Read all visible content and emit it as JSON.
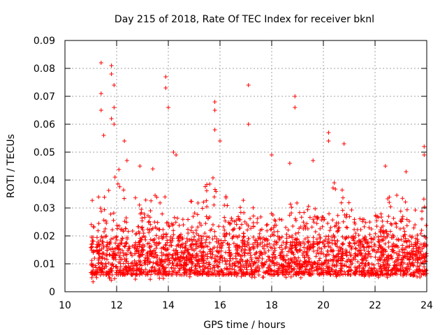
{
  "chart_data": {
    "type": "scatter",
    "title": "Day 215 of 2018, Rate Of TEC Index for receiver bknl",
    "xlabel": "GPS time / hours",
    "ylabel": "ROTI / TECUs",
    "xlim": [
      10,
      24
    ],
    "ylim": [
      0,
      0.09
    ],
    "grid": true,
    "marker": "+",
    "color": "#ff0000",
    "x_ticks": [
      10,
      12,
      14,
      16,
      18,
      20,
      22,
      24
    ],
    "x_tick_labels": [
      "10",
      "12",
      "14",
      "16",
      "18",
      "20",
      "22",
      "24"
    ],
    "y_ticks": [
      0,
      0.01,
      0.02,
      0.03,
      0.04,
      0.05,
      0.06,
      0.07,
      0.08,
      0.09
    ],
    "y_tick_labels": [
      "0",
      "0.01",
      "0.02",
      "0.03",
      "0.04",
      "0.05",
      "0.06",
      "0.07",
      "0.08",
      "0.09"
    ],
    "data_x_range": [
      11.0,
      24.0
    ],
    "series": [
      {
        "name": "ROTI",
        "points": [
          [
            11.4,
            0.082
          ],
          [
            11.8,
            0.081
          ],
          [
            11.8,
            0.078
          ],
          [
            11.9,
            0.074
          ],
          [
            11.4,
            0.071
          ],
          [
            11.9,
            0.066
          ],
          [
            11.8,
            0.062
          ],
          [
            11.9,
            0.06
          ],
          [
            11.4,
            0.065
          ],
          [
            11.5,
            0.056
          ],
          [
            13.9,
            0.077
          ],
          [
            13.9,
            0.073
          ],
          [
            14.0,
            0.066
          ],
          [
            14.2,
            0.05
          ],
          [
            15.8,
            0.068
          ],
          [
            15.8,
            0.065
          ],
          [
            16.0,
            0.054
          ],
          [
            15.8,
            0.058
          ],
          [
            17.1,
            0.074
          ],
          [
            17.1,
            0.06
          ],
          [
            18.9,
            0.07
          ],
          [
            18.9,
            0.066
          ],
          [
            20.2,
            0.057
          ],
          [
            20.2,
            0.054
          ],
          [
            20.8,
            0.053
          ],
          [
            23.9,
            0.052
          ],
          [
            23.9,
            0.049
          ],
          [
            12.3,
            0.054
          ],
          [
            12.4,
            0.047
          ],
          [
            12.9,
            0.045
          ],
          [
            13.4,
            0.044
          ],
          [
            14.3,
            0.049
          ],
          [
            18.0,
            0.049
          ],
          [
            18.7,
            0.046
          ],
          [
            19.6,
            0.047
          ],
          [
            22.4,
            0.045
          ],
          [
            23.2,
            0.043
          ]
        ]
      }
    ],
    "density_profile": {
      "x_hours": [
        11,
        11.5,
        12,
        12.5,
        13,
        13.5,
        14,
        14.5,
        15,
        15.5,
        16,
        16.5,
        17,
        17.5,
        18,
        18.5,
        19,
        19.5,
        20,
        20.5,
        21,
        21.5,
        22,
        22.5,
        23,
        23.5,
        24
      ],
      "typical_upper": [
        0.035,
        0.042,
        0.045,
        0.04,
        0.034,
        0.038,
        0.036,
        0.03,
        0.036,
        0.04,
        0.042,
        0.036,
        0.034,
        0.032,
        0.03,
        0.03,
        0.034,
        0.032,
        0.038,
        0.04,
        0.034,
        0.03,
        0.03,
        0.036,
        0.034,
        0.03,
        0.038
      ],
      "typical_lower": [
        0.003,
        0.004,
        0.004,
        0.004,
        0.005,
        0.004,
        0.005,
        0.005,
        0.005,
        0.005,
        0.005,
        0.005,
        0.005,
        0.005,
        0.005,
        0.005,
        0.005,
        0.005,
        0.005,
        0.005,
        0.005,
        0.005,
        0.005,
        0.005,
        0.005,
        0.005,
        0.005
      ]
    }
  }
}
